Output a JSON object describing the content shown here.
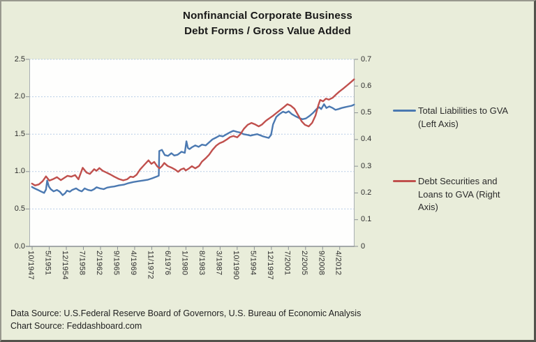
{
  "title": {
    "line1": "Nonfinancial Corporate Business",
    "line2": "Debt Forms / Gross Value Added"
  },
  "legend": {
    "entries": [
      {
        "lines": [
          "Total Liabilities to GVA",
          "(Left Axis)"
        ],
        "color": "#4B79B1"
      },
      {
        "lines": [
          "Debt Securities and",
          "Loans to GVA (Right",
          "Axis)"
        ],
        "color": "#C0504D"
      }
    ]
  },
  "sources": {
    "data_source": "Data Source: U.S.Federal Reserve Board of Governors, U.S. Bureau of Economic Analysis",
    "chart_source": "Chart Source: Feddashboard.com"
  },
  "colors": {
    "background": "#E9EDDA",
    "plot_background": "#FEFEFD",
    "gridline": "#9FBCDE",
    "axis_line": "#A9AFB3",
    "baseline": "#8A9094",
    "blue_series": "#4B79B1",
    "red_series": "#C0504D"
  },
  "chart_data": {
    "type": "line",
    "title": "Nonfinancial Corporate Business Debt Forms / Gross Value Added",
    "grid": "horizontal dotted (left-axis values)",
    "legend_position": "right",
    "x_domain": [
      1947.2,
      2015.4
    ],
    "left_axis": {
      "min": 0,
      "max": 2.5,
      "tick_values": [
        0,
        0.5,
        1.0,
        1.5,
        2.0,
        2.5
      ],
      "tick_labels": [
        "0.0",
        "0.5",
        "1.0",
        "1.5",
        "2.0",
        "2.5"
      ]
    },
    "right_axis": {
      "min": 0,
      "max": 0.7,
      "tick_values": [
        0,
        0.1,
        0.2,
        0.3,
        0.4,
        0.5,
        0.6,
        0.7
      ],
      "tick_labels": [
        "0",
        "0.1",
        "0.2",
        "0.3",
        "0.4",
        "0.5",
        "0.6",
        "0.7"
      ]
    },
    "x_ticks": [
      {
        "label": "10/1947",
        "t": 1947.79
      },
      {
        "label": "5/1951",
        "t": 1951.38
      },
      {
        "label": "12/1954",
        "t": 1954.96
      },
      {
        "label": "7/1958",
        "t": 1958.54
      },
      {
        "label": "2/1962",
        "t": 1962.13
      },
      {
        "label": "9/1965",
        "t": 1965.71
      },
      {
        "label": "4/1969",
        "t": 1969.29
      },
      {
        "label": "11/1972",
        "t": 1972.88
      },
      {
        "label": "6/1976",
        "t": 1976.46
      },
      {
        "label": "1/1980",
        "t": 1980.04
      },
      {
        "label": "8/1983",
        "t": 1983.63
      },
      {
        "label": "3/1987",
        "t": 1987.21
      },
      {
        "label": "10/1990",
        "t": 1990.79
      },
      {
        "label": "5/1994",
        "t": 1994.38
      },
      {
        "label": "12/1997",
        "t": 1997.96
      },
      {
        "label": "7/2001",
        "t": 2001.54
      },
      {
        "label": "2/2005",
        "t": 2005.13
      },
      {
        "label": "9/2008",
        "t": 2008.71
      },
      {
        "label": "4/2012",
        "t": 2012.29
      }
    ],
    "series": [
      {
        "name": "Total Liabilities to GVA (Left Axis)",
        "axis": "left",
        "color": "#4B79B1",
        "points": [
          [
            1947.75,
            0.795
          ],
          [
            1948.3,
            0.775
          ],
          [
            1949.0,
            0.755
          ],
          [
            1949.6,
            0.735
          ],
          [
            1950.3,
            0.715
          ],
          [
            1950.7,
            0.76
          ],
          [
            1950.95,
            0.88
          ],
          [
            1951.3,
            0.8
          ],
          [
            1951.7,
            0.765
          ],
          [
            1952.3,
            0.735
          ],
          [
            1953.0,
            0.755
          ],
          [
            1953.6,
            0.73
          ],
          [
            1954.2,
            0.685
          ],
          [
            1954.7,
            0.71
          ],
          [
            1955.1,
            0.745
          ],
          [
            1955.7,
            0.73
          ],
          [
            1956.2,
            0.755
          ],
          [
            1957.0,
            0.775
          ],
          [
            1957.6,
            0.75
          ],
          [
            1958.2,
            0.735
          ],
          [
            1958.8,
            0.775
          ],
          [
            1959.5,
            0.755
          ],
          [
            1960.2,
            0.745
          ],
          [
            1960.8,
            0.765
          ],
          [
            1961.3,
            0.79
          ],
          [
            1962.0,
            0.775
          ],
          [
            1962.8,
            0.765
          ],
          [
            1963.5,
            0.785
          ],
          [
            1964.3,
            0.795
          ],
          [
            1965.0,
            0.8
          ],
          [
            1966.0,
            0.815
          ],
          [
            1967.0,
            0.825
          ],
          [
            1968.0,
            0.845
          ],
          [
            1969.0,
            0.86
          ],
          [
            1970.0,
            0.87
          ],
          [
            1971.0,
            0.88
          ],
          [
            1972.0,
            0.89
          ],
          [
            1973.0,
            0.91
          ],
          [
            1973.8,
            0.93
          ],
          [
            1974.35,
            0.945
          ],
          [
            1974.45,
            1.275
          ],
          [
            1975.0,
            1.29
          ],
          [
            1975.6,
            1.22
          ],
          [
            1976.3,
            1.21
          ],
          [
            1977.0,
            1.245
          ],
          [
            1977.6,
            1.215
          ],
          [
            1978.3,
            1.225
          ],
          [
            1979.1,
            1.265
          ],
          [
            1979.8,
            1.25
          ],
          [
            1980.15,
            1.405
          ],
          [
            1980.45,
            1.315
          ],
          [
            1980.8,
            1.3
          ],
          [
            1981.3,
            1.325
          ],
          [
            1982.0,
            1.35
          ],
          [
            1982.7,
            1.33
          ],
          [
            1983.4,
            1.36
          ],
          [
            1984.2,
            1.35
          ],
          [
            1984.9,
            1.39
          ],
          [
            1985.6,
            1.43
          ],
          [
            1986.4,
            1.455
          ],
          [
            1987.1,
            1.48
          ],
          [
            1987.8,
            1.47
          ],
          [
            1988.6,
            1.5
          ],
          [
            1989.3,
            1.525
          ],
          [
            1990.0,
            1.545
          ],
          [
            1990.8,
            1.53
          ],
          [
            1991.5,
            1.52
          ],
          [
            1992.1,
            1.5
          ],
          [
            1993.0,
            1.49
          ],
          [
            1993.6,
            1.48
          ],
          [
            1994.2,
            1.49
          ],
          [
            1995.0,
            1.5
          ],
          [
            1995.6,
            1.485
          ],
          [
            1996.2,
            1.47
          ],
          [
            1996.8,
            1.46
          ],
          [
            1997.4,
            1.45
          ],
          [
            1997.9,
            1.49
          ],
          [
            1998.3,
            1.63
          ],
          [
            1999.0,
            1.73
          ],
          [
            1999.6,
            1.765
          ],
          [
            2000.4,
            1.8
          ],
          [
            2001.0,
            1.785
          ],
          [
            2001.6,
            1.805
          ],
          [
            2002.2,
            1.77
          ],
          [
            2003.0,
            1.74
          ],
          [
            2003.8,
            1.715
          ],
          [
            2004.5,
            1.7
          ],
          [
            2005.2,
            1.71
          ],
          [
            2006.0,
            1.745
          ],
          [
            2006.8,
            1.79
          ],
          [
            2007.5,
            1.84
          ],
          [
            2008.0,
            1.86
          ],
          [
            2008.4,
            1.835
          ],
          [
            2009.0,
            1.9
          ],
          [
            2009.5,
            1.85
          ],
          [
            2010.1,
            1.87
          ],
          [
            2010.8,
            1.85
          ],
          [
            2011.4,
            1.825
          ],
          [
            2012.0,
            1.835
          ],
          [
            2012.7,
            1.85
          ],
          [
            2013.4,
            1.86
          ],
          [
            2014.1,
            1.87
          ],
          [
            2014.8,
            1.88
          ],
          [
            2015.3,
            1.895
          ]
        ]
      },
      {
        "name": "Debt Securities and Loans to GVA (Right Axis)",
        "axis": "right",
        "color": "#C0504D",
        "points": [
          [
            1947.75,
            0.235
          ],
          [
            1948.4,
            0.228
          ],
          [
            1949.2,
            0.232
          ],
          [
            1950.0,
            0.244
          ],
          [
            1950.7,
            0.262
          ],
          [
            1951.4,
            0.246
          ],
          [
            1952.1,
            0.251
          ],
          [
            1953.0,
            0.259
          ],
          [
            1953.8,
            0.248
          ],
          [
            1954.5,
            0.256
          ],
          [
            1955.2,
            0.264
          ],
          [
            1956.0,
            0.261
          ],
          [
            1956.8,
            0.267
          ],
          [
            1957.5,
            0.251
          ],
          [
            1958.4,
            0.294
          ],
          [
            1959.2,
            0.276
          ],
          [
            1959.9,
            0.271
          ],
          [
            1960.8,
            0.289
          ],
          [
            1961.3,
            0.283
          ],
          [
            1961.9,
            0.293
          ],
          [
            1962.6,
            0.283
          ],
          [
            1963.4,
            0.276
          ],
          [
            1964.2,
            0.269
          ],
          [
            1965.0,
            0.261
          ],
          [
            1966.0,
            0.252
          ],
          [
            1966.9,
            0.247
          ],
          [
            1967.7,
            0.251
          ],
          [
            1968.4,
            0.261
          ],
          [
            1969.0,
            0.259
          ],
          [
            1969.7,
            0.268
          ],
          [
            1970.4,
            0.287
          ],
          [
            1971.2,
            0.303
          ],
          [
            1972.2,
            0.322
          ],
          [
            1972.8,
            0.309
          ],
          [
            1973.4,
            0.316
          ],
          [
            1974.0,
            0.3
          ],
          [
            1974.5,
            0.292
          ],
          [
            1975.0,
            0.3
          ],
          [
            1975.5,
            0.312
          ],
          [
            1976.2,
            0.301
          ],
          [
            1977.0,
            0.295
          ],
          [
            1977.8,
            0.287
          ],
          [
            1978.4,
            0.279
          ],
          [
            1979.0,
            0.288
          ],
          [
            1979.6,
            0.292
          ],
          [
            1980.0,
            0.284
          ],
          [
            1980.7,
            0.292
          ],
          [
            1981.3,
            0.3
          ],
          [
            1982.0,
            0.292
          ],
          [
            1982.8,
            0.301
          ],
          [
            1983.4,
            0.317
          ],
          [
            1984.2,
            0.33
          ],
          [
            1984.9,
            0.343
          ],
          [
            1985.6,
            0.361
          ],
          [
            1986.4,
            0.377
          ],
          [
            1987.1,
            0.386
          ],
          [
            1987.8,
            0.391
          ],
          [
            1988.6,
            0.4
          ],
          [
            1989.3,
            0.409
          ],
          [
            1990.0,
            0.413
          ],
          [
            1990.8,
            0.408
          ],
          [
            1991.5,
            0.421
          ],
          [
            1992.2,
            0.44
          ],
          [
            1993.0,
            0.455
          ],
          [
            1993.8,
            0.462
          ],
          [
            1994.6,
            0.456
          ],
          [
            1995.3,
            0.449
          ],
          [
            1996.0,
            0.456
          ],
          [
            1996.8,
            0.47
          ],
          [
            1997.6,
            0.48
          ],
          [
            1998.3,
            0.489
          ],
          [
            1999.0,
            0.499
          ],
          [
            1999.8,
            0.51
          ],
          [
            2000.5,
            0.52
          ],
          [
            2001.3,
            0.532
          ],
          [
            2002.0,
            0.527
          ],
          [
            2002.8,
            0.515
          ],
          [
            2003.6,
            0.49
          ],
          [
            2004.3,
            0.468
          ],
          [
            2005.0,
            0.455
          ],
          [
            2005.8,
            0.449
          ],
          [
            2006.5,
            0.462
          ],
          [
            2007.2,
            0.489
          ],
          [
            2007.8,
            0.528
          ],
          [
            2008.2,
            0.548
          ],
          [
            2008.8,
            0.543
          ],
          [
            2009.4,
            0.553
          ],
          [
            2010.0,
            0.549
          ],
          [
            2010.8,
            0.556
          ],
          [
            2011.5,
            0.568
          ],
          [
            2012.2,
            0.579
          ],
          [
            2013.0,
            0.59
          ],
          [
            2013.8,
            0.602
          ],
          [
            2014.6,
            0.614
          ],
          [
            2015.3,
            0.625
          ]
        ]
      }
    ]
  }
}
